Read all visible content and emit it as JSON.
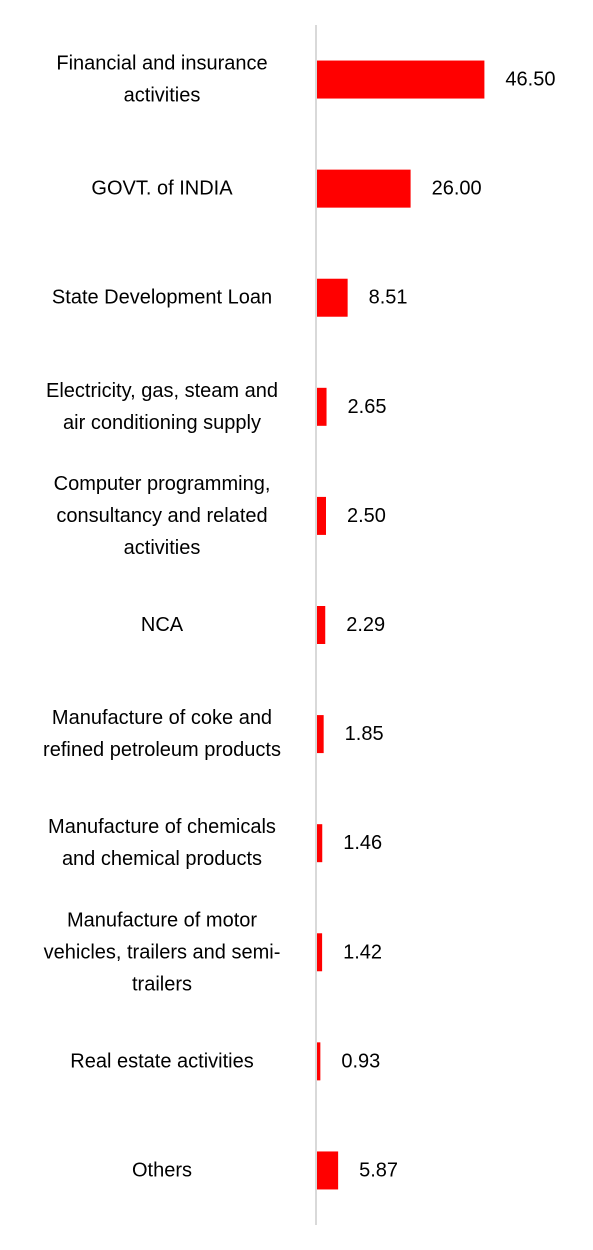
{
  "chart_data": {
    "type": "bar",
    "orientation": "horizontal",
    "categories": [
      [
        "Financial and insurance",
        "activities"
      ],
      [
        "GOVT. of INDIA"
      ],
      [
        "State Development Loan"
      ],
      [
        "Electricity, gas, steam and",
        "air conditioning supply"
      ],
      [
        "Computer programming,",
        "consultancy and related",
        "activities"
      ],
      [
        "NCA"
      ],
      [
        "Manufacture of coke and",
        "refined petroleum products"
      ],
      [
        "Manufacture of chemicals",
        "and chemical products"
      ],
      [
        "Manufacture of motor",
        "vehicles, trailers and semi-",
        "trailers"
      ],
      [
        "Real estate activities"
      ],
      [
        "Others"
      ]
    ],
    "values": [
      46.5,
      26.0,
      8.51,
      2.65,
      2.5,
      2.29,
      1.85,
      1.46,
      1.42,
      0.93,
      5.87
    ],
    "value_labels": [
      "46.50",
      "26.00",
      "8.51",
      "2.65",
      "2.50",
      "2.29",
      "1.85",
      "1.46",
      "1.42",
      "0.93",
      "5.87"
    ],
    "xlim": [
      0,
      50
    ],
    "grid": false,
    "legend": "none",
    "bar_color": "#ff0000",
    "axis_color": "#d9d9d9"
  }
}
